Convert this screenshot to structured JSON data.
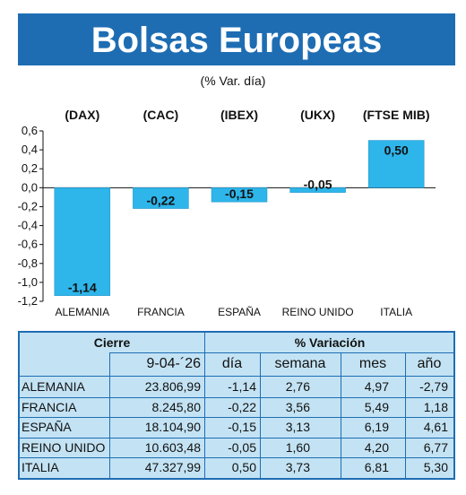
{
  "title": "Bolsas Europeas",
  "subtitle": "(% Var. día)",
  "chart_data": {
    "type": "bar",
    "categories": [
      "ALEMANIA",
      "FRANCIA",
      "ESPAÑA",
      "REINO UNIDO",
      "ITALIA"
    ],
    "index_labels": [
      "(DAX)",
      "(CAC)",
      "(IBEX)",
      "(UKX)",
      "(FTSE MIB)"
    ],
    "values": [
      -1.14,
      -0.22,
      -0.15,
      -0.05,
      0.5
    ],
    "value_labels": [
      "-1,14",
      "-0,22",
      "-0,15",
      "-0,05",
      "0,50"
    ],
    "ylim": [
      -1.2,
      0.6
    ],
    "yticks": [
      0.6,
      0.4,
      0.2,
      0.0,
      -0.2,
      -0.4,
      -0.6,
      -0.8,
      -1.0,
      -1.2
    ],
    "ytick_labels": [
      "0,6",
      "0,4",
      "0,2",
      "0,0",
      "-0,2",
      "-0,4",
      "-0,6",
      "-0,8",
      "-1,0",
      "-1,2"
    ],
    "bar_color": "#2eb5ea",
    "grid": false
  },
  "table": {
    "header_cierre": "Cierre",
    "header_variacion": "% Variación",
    "date": "9-04-´26",
    "col_dia": "día",
    "col_semana": "semana",
    "col_mes": "mes",
    "col_anio": "año",
    "rows": [
      {
        "country": "ALEMANIA",
        "cierre": "23.806,99",
        "dia": "-1,14",
        "semana": "2,76",
        "mes": "4,97",
        "anio": "-2,79"
      },
      {
        "country": "FRANCIA",
        "cierre": "8.245,80",
        "dia": "-0,22",
        "semana": "3,56",
        "mes": "5,49",
        "anio": "1,18"
      },
      {
        "country": "ESPAÑA",
        "cierre": "18.104,90",
        "dia": "-0,15",
        "semana": "3,13",
        "mes": "6,19",
        "anio": "4,61"
      },
      {
        "country": "REINO UNIDO",
        "cierre": "10.603,48",
        "dia": "-0,05",
        "semana": "1,60",
        "mes": "4,20",
        "anio": "6,77"
      },
      {
        "country": "ITALIA",
        "cierre": "47.327,99",
        "dia": "0,50",
        "semana": "3,73",
        "mes": "6,81",
        "anio": "5,30"
      }
    ]
  },
  "colors": {
    "brand_blue": "#1e6db3",
    "table_bg": "#c3e3f4",
    "bar": "#2eb5ea"
  }
}
